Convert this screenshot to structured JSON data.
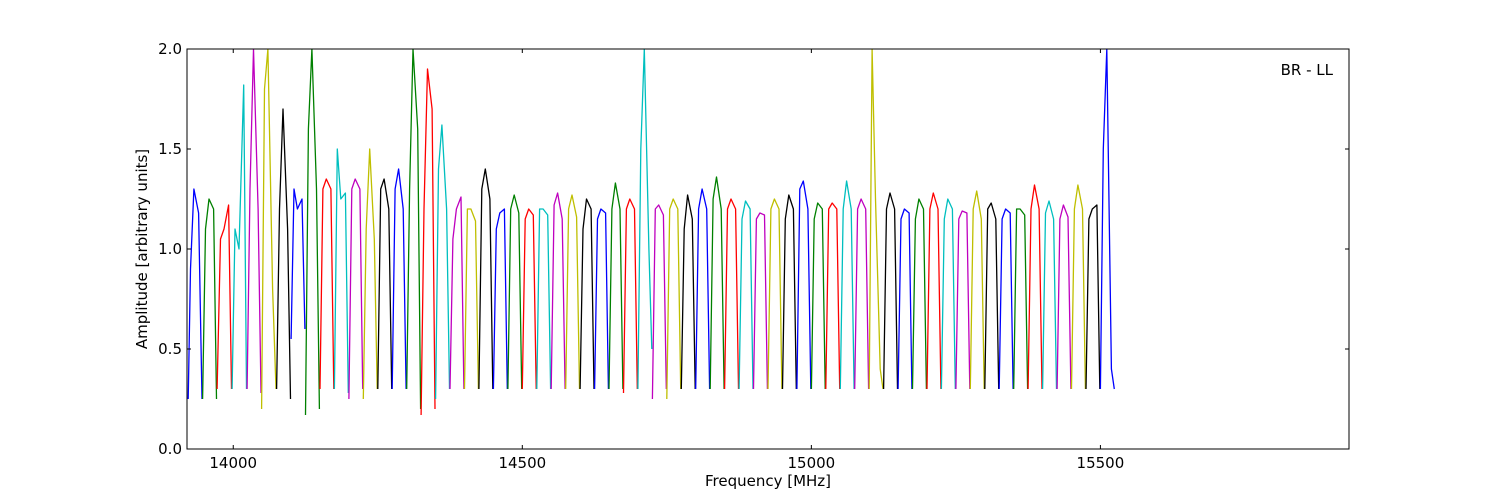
{
  "chart_data": {
    "type": "line",
    "title": "",
    "annotation": "BR - LL",
    "xlabel": "Frequency [MHz]",
    "ylabel": "Amplitude [arbitrary units]",
    "xlim": [
      13920,
      15930
    ],
    "ylim": [
      0.0,
      2.0
    ],
    "xticks": [
      14000,
      14500,
      15000,
      15500
    ],
    "xtick_labels": [
      "14000",
      "14500",
      "15000",
      "15500"
    ],
    "yticks": [
      0.0,
      0.5,
      1.0,
      1.5,
      2.0
    ],
    "ytick_labels": [
      "0.0",
      "0.5",
      "1.0",
      "1.5",
      "2.0"
    ],
    "grid": false,
    "legend": "none",
    "channel_width_mhz": 25,
    "colors": [
      "#0000ff",
      "#008000",
      "#ff0000",
      "#00bfbf",
      "#bf00bf",
      "#bfbf00",
      "#000000"
    ],
    "raw_color": "#bfbfbf",
    "series": [
      {
        "color": "#0000ff",
        "x": [
          13922,
          13926,
          13932,
          13940,
          13946
        ],
        "y": [
          0.25,
          0.9,
          1.3,
          1.18,
          0.25
        ]
      },
      {
        "color": "#008000",
        "x": [
          13947,
          13952,
          13958,
          13966,
          13971
        ],
        "y": [
          0.25,
          1.1,
          1.25,
          1.2,
          0.25
        ]
      },
      {
        "color": "#ff0000",
        "x": [
          13972,
          13978,
          13984,
          13992,
          13997
        ],
        "y": [
          0.3,
          1.05,
          1.1,
          1.22,
          0.3
        ]
      },
      {
        "color": "#00bfbf",
        "x": [
          13998,
          14003,
          14010,
          14018,
          14023
        ],
        "y": [
          0.3,
          1.1,
          1.0,
          1.82,
          0.3
        ]
      },
      {
        "color": "#bf00bf",
        "x": [
          14024,
          14029,
          14035,
          14043,
          14048
        ],
        "y": [
          0.3,
          1.3,
          2.0,
          1.2,
          0.28
        ]
      },
      {
        "color": "#bfbf00",
        "x": [
          14049,
          14054,
          14060,
          14068,
          14074
        ],
        "y": [
          0.2,
          1.8,
          2.0,
          0.8,
          0.3
        ]
      },
      {
        "color": "#000000",
        "x": [
          14075,
          14080,
          14086,
          14094,
          14099
        ],
        "y": [
          0.3,
          1.2,
          1.7,
          1.1,
          0.25
        ]
      },
      {
        "color": "#0000ff",
        "x": [
          14100,
          14105,
          14111,
          14119,
          14124
        ],
        "y": [
          0.55,
          1.3,
          1.2,
          1.25,
          0.6
        ]
      },
      {
        "color": "#008000",
        "x": [
          14125,
          14130,
          14136,
          14144,
          14149
        ],
        "y": [
          0.17,
          1.6,
          2.0,
          1.3,
          0.2
        ]
      },
      {
        "color": "#ff0000",
        "x": [
          14150,
          14155,
          14161,
          14169,
          14174
        ],
        "y": [
          0.3,
          1.3,
          1.35,
          1.3,
          0.3
        ]
      },
      {
        "color": "#00bfbf",
        "x": [
          14175,
          14180,
          14186,
          14194,
          14199
        ],
        "y": [
          0.3,
          1.5,
          1.25,
          1.28,
          0.28
        ]
      },
      {
        "color": "#bf00bf",
        "x": [
          14200,
          14205,
          14211,
          14219,
          14224
        ],
        "y": [
          0.25,
          1.3,
          1.35,
          1.3,
          0.3
        ]
      },
      {
        "color": "#bfbf00",
        "x": [
          14225,
          14230,
          14236,
          14244,
          14249
        ],
        "y": [
          0.25,
          1.1,
          1.5,
          1.05,
          0.3
        ]
      },
      {
        "color": "#000000",
        "x": [
          14250,
          14255,
          14261,
          14269,
          14274
        ],
        "y": [
          0.3,
          1.3,
          1.35,
          1.2,
          0.3
        ]
      },
      {
        "color": "#0000ff",
        "x": [
          14275,
          14280,
          14286,
          14294,
          14299
        ],
        "y": [
          0.3,
          1.3,
          1.4,
          1.2,
          0.3
        ]
      },
      {
        "color": "#008000",
        "x": [
          14300,
          14305,
          14311,
          14319,
          14324
        ],
        "y": [
          0.3,
          1.3,
          2.0,
          1.6,
          0.2
        ]
      },
      {
        "color": "#ff0000",
        "x": [
          14325,
          14330,
          14336,
          14344,
          14349
        ],
        "y": [
          0.17,
          1.2,
          1.9,
          1.7,
          0.2
        ]
      },
      {
        "color": "#00bfbf",
        "x": [
          14350,
          14355,
          14361,
          14369,
          14374
        ],
        "y": [
          0.25,
          1.4,
          1.62,
          1.2,
          0.3
        ]
      },
      {
        "color": "#bf00bf",
        "x": [
          14375,
          14380,
          14386,
          14394,
          14399
        ],
        "y": [
          0.3,
          1.05,
          1.2,
          1.26,
          0.3
        ]
      },
      {
        "color": "#bfbf00",
        "x": [
          14400,
          14405,
          14411,
          14419,
          14424
        ],
        "y": [
          0.3,
          1.2,
          1.2,
          1.14,
          0.3
        ]
      },
      {
        "color": "#000000",
        "x": [
          14425,
          14430,
          14436,
          14444,
          14449
        ],
        "y": [
          0.3,
          1.3,
          1.4,
          1.25,
          0.3
        ]
      },
      {
        "color": "#0000ff",
        "x": [
          14450,
          14455,
          14461,
          14469,
          14474
        ],
        "y": [
          0.3,
          1.1,
          1.18,
          1.2,
          0.3
        ]
      },
      {
        "color": "#008000",
        "x": [
          14475,
          14480,
          14486,
          14494,
          14499
        ],
        "y": [
          0.3,
          1.2,
          1.27,
          1.18,
          0.3
        ]
      },
      {
        "color": "#ff0000",
        "x": [
          14500,
          14505,
          14511,
          14519,
          14524
        ],
        "y": [
          0.3,
          1.15,
          1.2,
          1.17,
          0.3
        ]
      },
      {
        "color": "#00bfbf",
        "x": [
          14525,
          14530,
          14536,
          14544,
          14549
        ],
        "y": [
          0.3,
          1.2,
          1.2,
          1.17,
          0.3
        ]
      },
      {
        "color": "#bf00bf",
        "x": [
          14550,
          14555,
          14561,
          14569,
          14574
        ],
        "y": [
          0.3,
          1.22,
          1.28,
          1.15,
          0.3
        ]
      },
      {
        "color": "#bfbf00",
        "x": [
          14575,
          14580,
          14586,
          14594,
          14599
        ],
        "y": [
          0.3,
          1.2,
          1.27,
          1.16,
          0.3
        ]
      },
      {
        "color": "#000000",
        "x": [
          14600,
          14605,
          14611,
          14619,
          14624
        ],
        "y": [
          0.3,
          1.1,
          1.25,
          1.2,
          0.3
        ]
      },
      {
        "color": "#0000ff",
        "x": [
          14625,
          14630,
          14636,
          14644,
          14649
        ],
        "y": [
          0.3,
          1.15,
          1.2,
          1.18,
          0.3
        ]
      },
      {
        "color": "#008000",
        "x": [
          14650,
          14655,
          14661,
          14669,
          14674
        ],
        "y": [
          0.3,
          1.2,
          1.33,
          1.2,
          0.3
        ]
      },
      {
        "color": "#ff0000",
        "x": [
          14675,
          14680,
          14686,
          14694,
          14699
        ],
        "y": [
          0.28,
          1.2,
          1.25,
          1.2,
          0.3
        ]
      },
      {
        "color": "#00bfbf",
        "x": [
          14700,
          14705,
          14711,
          14719,
          14724
        ],
        "y": [
          0.3,
          1.5,
          2.0,
          1.0,
          0.5
        ]
      },
      {
        "color": "#bf00bf",
        "x": [
          14725,
          14730,
          14736,
          14744,
          14749
        ],
        "y": [
          0.25,
          1.2,
          1.22,
          1.17,
          0.3
        ]
      },
      {
        "color": "#bfbf00",
        "x": [
          14750,
          14755,
          14761,
          14769,
          14774
        ],
        "y": [
          0.25,
          1.2,
          1.25,
          1.2,
          0.3
        ]
      },
      {
        "color": "#000000",
        "x": [
          14775,
          14780,
          14786,
          14794,
          14799
        ],
        "y": [
          0.3,
          1.1,
          1.27,
          1.15,
          0.3
        ]
      },
      {
        "color": "#0000ff",
        "x": [
          14800,
          14805,
          14811,
          14819,
          14824
        ],
        "y": [
          0.3,
          1.2,
          1.3,
          1.2,
          0.3
        ]
      },
      {
        "color": "#008000",
        "x": [
          14825,
          14830,
          14836,
          14844,
          14849
        ],
        "y": [
          0.3,
          1.25,
          1.36,
          1.2,
          0.3
        ]
      },
      {
        "color": "#ff0000",
        "x": [
          14850,
          14855,
          14861,
          14869,
          14874
        ],
        "y": [
          0.3,
          1.2,
          1.25,
          1.2,
          0.3
        ]
      },
      {
        "color": "#00bfbf",
        "x": [
          14875,
          14880,
          14886,
          14894,
          14899
        ],
        "y": [
          0.3,
          1.15,
          1.24,
          1.2,
          0.3
        ]
      },
      {
        "color": "#bf00bf",
        "x": [
          14900,
          14905,
          14911,
          14919,
          14924
        ],
        "y": [
          0.3,
          1.15,
          1.18,
          1.17,
          0.3
        ]
      },
      {
        "color": "#bfbf00",
        "x": [
          14925,
          14930,
          14936,
          14944,
          14949
        ],
        "y": [
          0.3,
          1.2,
          1.25,
          1.2,
          0.3
        ]
      },
      {
        "color": "#000000",
        "x": [
          14950,
          14955,
          14961,
          14969,
          14974
        ],
        "y": [
          0.3,
          1.15,
          1.27,
          1.2,
          0.3
        ]
      },
      {
        "color": "#0000ff",
        "x": [
          14975,
          14980,
          14986,
          14994,
          14999
        ],
        "y": [
          0.3,
          1.3,
          1.34,
          1.2,
          0.3
        ]
      },
      {
        "color": "#008000",
        "x": [
          15000,
          15005,
          15011,
          15019,
          15024
        ],
        "y": [
          0.3,
          1.15,
          1.23,
          1.2,
          0.3
        ]
      },
      {
        "color": "#ff0000",
        "x": [
          15025,
          15030,
          15036,
          15044,
          15049
        ],
        "y": [
          0.3,
          1.2,
          1.23,
          1.2,
          0.3
        ]
      },
      {
        "color": "#00bfbf",
        "x": [
          15050,
          15055,
          15061,
          15069,
          15074
        ],
        "y": [
          0.3,
          1.2,
          1.34,
          1.2,
          0.3
        ]
      },
      {
        "color": "#bf00bf",
        "x": [
          15075,
          15080,
          15086,
          15094,
          15099
        ],
        "y": [
          0.3,
          1.2,
          1.25,
          1.2,
          0.3
        ]
      },
      {
        "color": "#bfbf00",
        "x": [
          15100,
          15105,
          15111,
          15119,
          15124
        ],
        "y": [
          0.3,
          2.0,
          1.25,
          0.4,
          0.3
        ]
      },
      {
        "color": "#000000",
        "x": [
          15125,
          15130,
          15136,
          15144,
          15149
        ],
        "y": [
          0.3,
          1.2,
          1.28,
          1.2,
          0.3
        ]
      },
      {
        "color": "#0000ff",
        "x": [
          15150,
          15155,
          15161,
          15169,
          15174
        ],
        "y": [
          0.3,
          1.15,
          1.2,
          1.18,
          0.3
        ]
      },
      {
        "color": "#008000",
        "x": [
          15175,
          15180,
          15186,
          15194,
          15199
        ],
        "y": [
          0.3,
          1.15,
          1.25,
          1.2,
          0.3
        ]
      },
      {
        "color": "#ff0000",
        "x": [
          15200,
          15205,
          15211,
          15219,
          15224
        ],
        "y": [
          0.3,
          1.2,
          1.28,
          1.2,
          0.3
        ]
      },
      {
        "color": "#00bfbf",
        "x": [
          15225,
          15230,
          15236,
          15244,
          15249
        ],
        "y": [
          0.3,
          1.15,
          1.25,
          1.2,
          0.3
        ]
      },
      {
        "color": "#bf00bf",
        "x": [
          15250,
          15255,
          15261,
          15269,
          15274
        ],
        "y": [
          0.3,
          1.15,
          1.19,
          1.18,
          0.3
        ]
      },
      {
        "color": "#bfbf00",
        "x": [
          15275,
          15280,
          15286,
          15294,
          15299
        ],
        "y": [
          0.3,
          1.2,
          1.29,
          1.15,
          0.3
        ]
      },
      {
        "color": "#000000",
        "x": [
          15300,
          15305,
          15311,
          15319,
          15324
        ],
        "y": [
          0.3,
          1.2,
          1.23,
          1.15,
          0.3
        ]
      },
      {
        "color": "#0000ff",
        "x": [
          15325,
          15330,
          15336,
          15344,
          15349
        ],
        "y": [
          0.3,
          1.15,
          1.2,
          1.18,
          0.3
        ]
      },
      {
        "color": "#008000",
        "x": [
          15350,
          15355,
          15361,
          15369,
          15374
        ],
        "y": [
          0.3,
          1.2,
          1.2,
          1.17,
          0.3
        ]
      },
      {
        "color": "#ff0000",
        "x": [
          15375,
          15380,
          15386,
          15394,
          15399
        ],
        "y": [
          0.3,
          1.2,
          1.32,
          1.2,
          0.3
        ]
      },
      {
        "color": "#00bfbf",
        "x": [
          15400,
          15405,
          15411,
          15419,
          15424
        ],
        "y": [
          0.3,
          1.18,
          1.24,
          1.15,
          0.3
        ]
      },
      {
        "color": "#bf00bf",
        "x": [
          15425,
          15430,
          15436,
          15444,
          15449
        ],
        "y": [
          0.3,
          1.15,
          1.22,
          1.16,
          0.3
        ]
      },
      {
        "color": "#bfbf00",
        "x": [
          15450,
          15455,
          15461,
          15469,
          15474
        ],
        "y": [
          0.3,
          1.2,
          1.32,
          1.2,
          0.3
        ]
      },
      {
        "color": "#000000",
        "x": [
          15475,
          15480,
          15486,
          15494,
          15499
        ],
        "y": [
          0.3,
          1.15,
          1.2,
          1.22,
          0.3
        ]
      },
      {
        "color": "#0000ff",
        "x": [
          15500,
          15505,
          15511,
          15519,
          15524
        ],
        "y": [
          0.3,
          1.5,
          2.0,
          0.4,
          0.3
        ]
      }
    ]
  }
}
